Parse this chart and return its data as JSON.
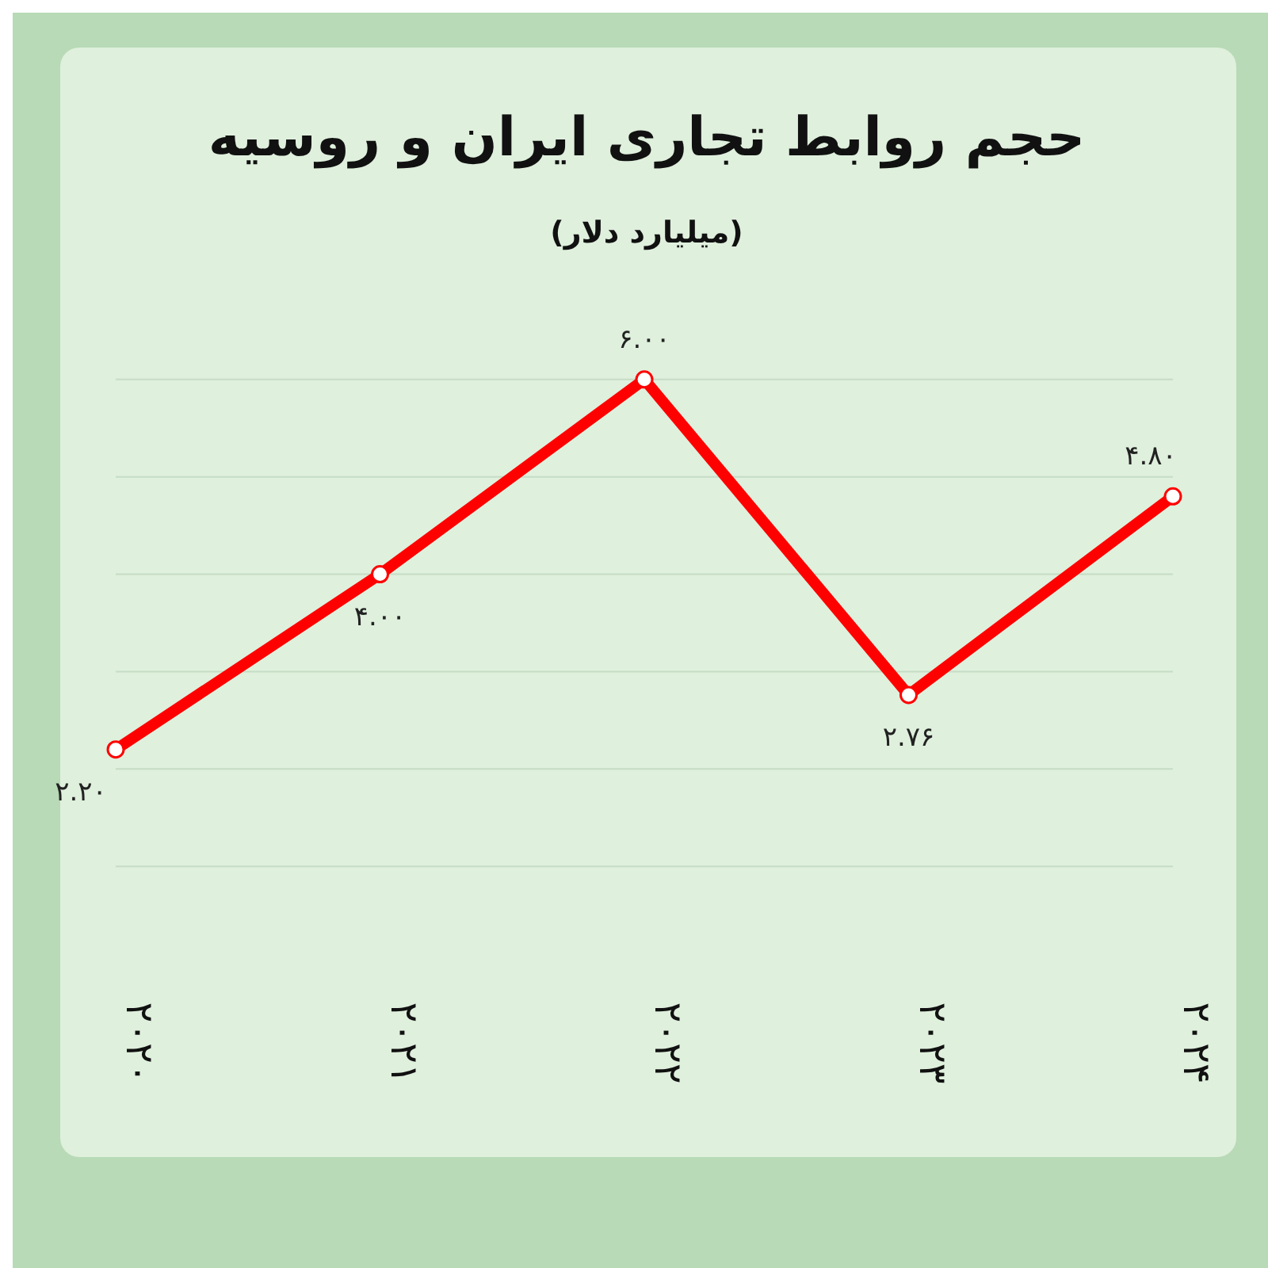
{
  "chart_data": {
    "type": "line",
    "title": "حجم روابط تجاری ایران و روسیه",
    "subtitle": "(میلیارد دلار)",
    "categories": [
      "۲۰۲۰",
      "۲۰۲۱",
      "۲۰۲۲",
      "۲۰۲۳",
      "۲۰۲۴"
    ],
    "series": [
      {
        "color": "#ff0000",
        "values": [
          2.2,
          4.0,
          6.0,
          2.76,
          4.8
        ],
        "value_labels": [
          "۲.۲۰",
          "۴.۰۰",
          "۶.۰۰",
          "۲.۷۶",
          "۴.۸۰"
        ]
      }
    ],
    "yticks": [
      {
        "value": 1,
        "label": null
      },
      {
        "value": 2,
        "label": null
      },
      {
        "value": 3,
        "label": null
      },
      {
        "value": 4,
        "label": null
      },
      {
        "value": 5,
        "label": null
      },
      {
        "value": 6,
        "label": null
      }
    ],
    "grid": "y",
    "marker": "circle",
    "line_style": "solid"
  }
}
